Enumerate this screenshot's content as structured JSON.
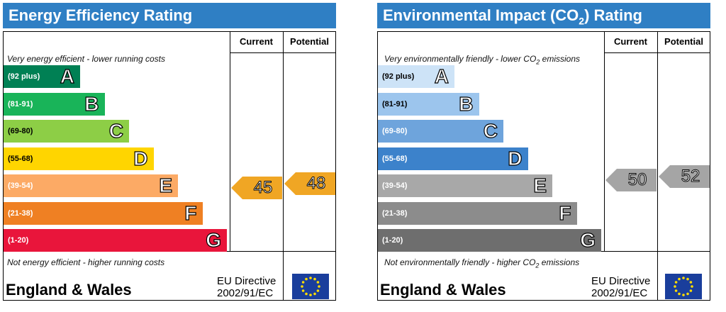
{
  "chart_data": [
    {
      "type": "bar",
      "title": "Energy Efficiency Rating",
      "col_current": "Current",
      "col_potential": "Potential",
      "note_top": "Very energy efficient - lower running costs",
      "note_bottom": "Not energy efficient - higher running costs",
      "bands": [
        {
          "range": "(92 plus)",
          "letter": "A",
          "color": "#008054"
        },
        {
          "range": "(81-91)",
          "letter": "B",
          "color": "#19b459"
        },
        {
          "range": "(69-80)",
          "letter": "C",
          "color": "#8dce46"
        },
        {
          "range": "(55-68)",
          "letter": "D",
          "color": "#ffd500"
        },
        {
          "range": "(39-54)",
          "letter": "E",
          "color": "#fcaa65"
        },
        {
          "range": "(21-38)",
          "letter": "F",
          "color": "#ef8023"
        },
        {
          "range": "(1-20)",
          "letter": "G",
          "color": "#e9153b"
        }
      ],
      "current": {
        "value": 45,
        "band": "E",
        "color": "#f0a624"
      },
      "potential": {
        "value": 48,
        "band": "E",
        "color": "#f0a624"
      },
      "country": "England & Wales",
      "directive_line1": "EU Directive",
      "directive_line2": "2002/91/EC"
    },
    {
      "type": "bar",
      "title": "Environmental Impact (CO",
      "title_sub": "2",
      "title_end": ") Rating",
      "col_current": "Current",
      "col_potential": "Potential",
      "note_top": "Very environmentally friendly - lower CO",
      "note_top_sub": "2",
      "note_top_end": " emissions",
      "note_bottom": "Not environmentally friendly - higher CO",
      "note_bottom_sub": "2",
      "note_bottom_end": " emissions",
      "bands": [
        {
          "range": "(92 plus)",
          "letter": "A",
          "color": "#cde3f7"
        },
        {
          "range": "(81-91)",
          "letter": "B",
          "color": "#9cc5ed"
        },
        {
          "range": "(69-80)",
          "letter": "C",
          "color": "#6ea4dc"
        },
        {
          "range": "(55-68)",
          "letter": "D",
          "color": "#3c82cb"
        },
        {
          "range": "(39-54)",
          "letter": "E",
          "color": "#a8a8a8"
        },
        {
          "range": "(21-38)",
          "letter": "F",
          "color": "#8c8c8c"
        },
        {
          "range": "(1-20)",
          "letter": "G",
          "color": "#6e6e6e"
        }
      ],
      "current": {
        "value": 50,
        "band": "E",
        "color": "#a5a5a5"
      },
      "potential": {
        "value": 52,
        "band": "E",
        "color": "#a5a5a5"
      },
      "country": "England & Wales",
      "directive_line1": "EU Directive",
      "directive_line2": "2002/91/EC"
    }
  ]
}
